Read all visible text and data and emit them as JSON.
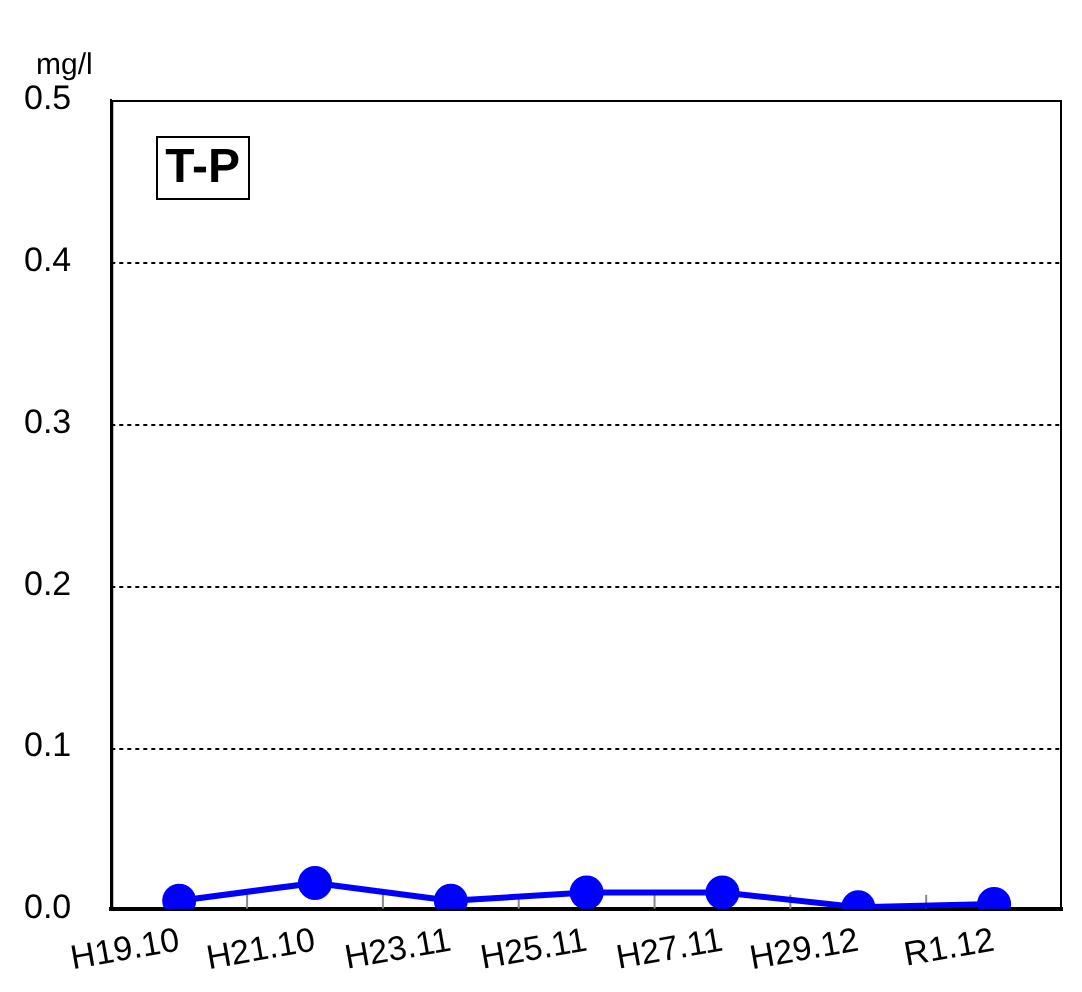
{
  "chart_data": {
    "type": "line",
    "title": "T-P",
    "ylabel": "mg/l",
    "categories": [
      "H19.10",
      "H21.10",
      "H23.11",
      "H25.11",
      "H27.11",
      "H29.12",
      "R1.12"
    ],
    "series": [
      {
        "color": "#0000ff",
        "values": [
          0.005,
          0.016,
          0.005,
          0.01,
          0.01,
          0.001,
          0.003
        ]
      }
    ],
    "ylim": [
      0,
      0.5
    ],
    "yticks": [
      {
        "value": 0,
        "label": "0.0"
      },
      0.1,
      0.2,
      0.3,
      0.4,
      0.5
    ],
    "grid": "y",
    "marker": "circle",
    "line_style": "solid",
    "legend": false
  }
}
